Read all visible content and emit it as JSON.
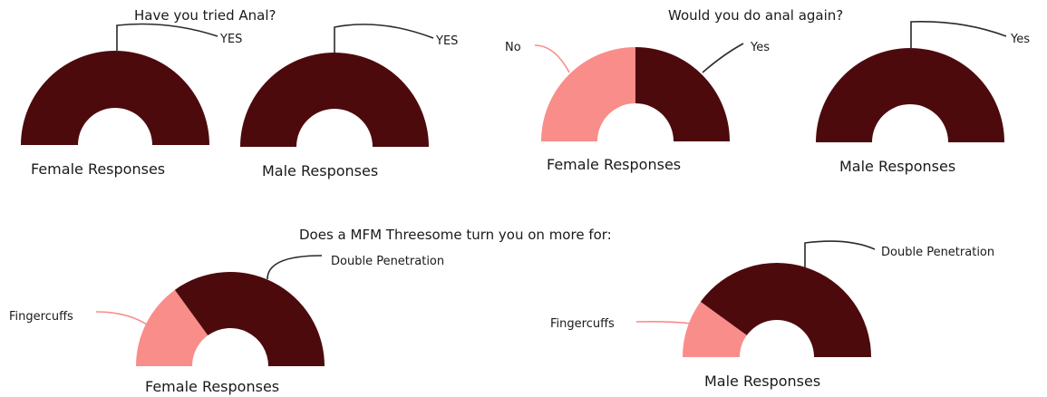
{
  "titles": {
    "tried": "Have you tried Anal?",
    "again": "Would you do anal again?",
    "mfm": "Does a MFM Threesome turn you on more for:"
  },
  "colors": {
    "dark": "#4d0a0d",
    "pink": "#f98d8a",
    "leader_dark": "#2a2a2a",
    "leader_pink": "#f98d8a"
  },
  "chart_data": [
    {
      "type": "pie",
      "title": "Have you tried Anal?",
      "caption": "Female Responses",
      "categories": [
        "YES"
      ],
      "values": [
        100
      ]
    },
    {
      "type": "pie",
      "title": "Have you tried Anal?",
      "caption": "Male Responses",
      "categories": [
        "YES"
      ],
      "values": [
        100
      ]
    },
    {
      "type": "pie",
      "title": "Would you do anal again?",
      "caption": "Female Responses",
      "categories": [
        "No",
        "Yes"
      ],
      "values": [
        50,
        50
      ]
    },
    {
      "type": "pie",
      "title": "Would you do anal again?",
      "caption": "Male Responses",
      "categories": [
        "Yes"
      ],
      "values": [
        100
      ]
    },
    {
      "type": "pie",
      "title": "Does a MFM Threesome turn you on more for:",
      "caption": "Female Responses",
      "categories": [
        "Fingercuffs",
        "Double Penetration"
      ],
      "values": [
        30,
        70
      ]
    },
    {
      "type": "pie",
      "title": "Does a MFM Threesome turn you on more for:",
      "caption": "Male Responses",
      "categories": [
        "Fingercuffs",
        "Double Penetration"
      ],
      "values": [
        20,
        80
      ]
    }
  ]
}
